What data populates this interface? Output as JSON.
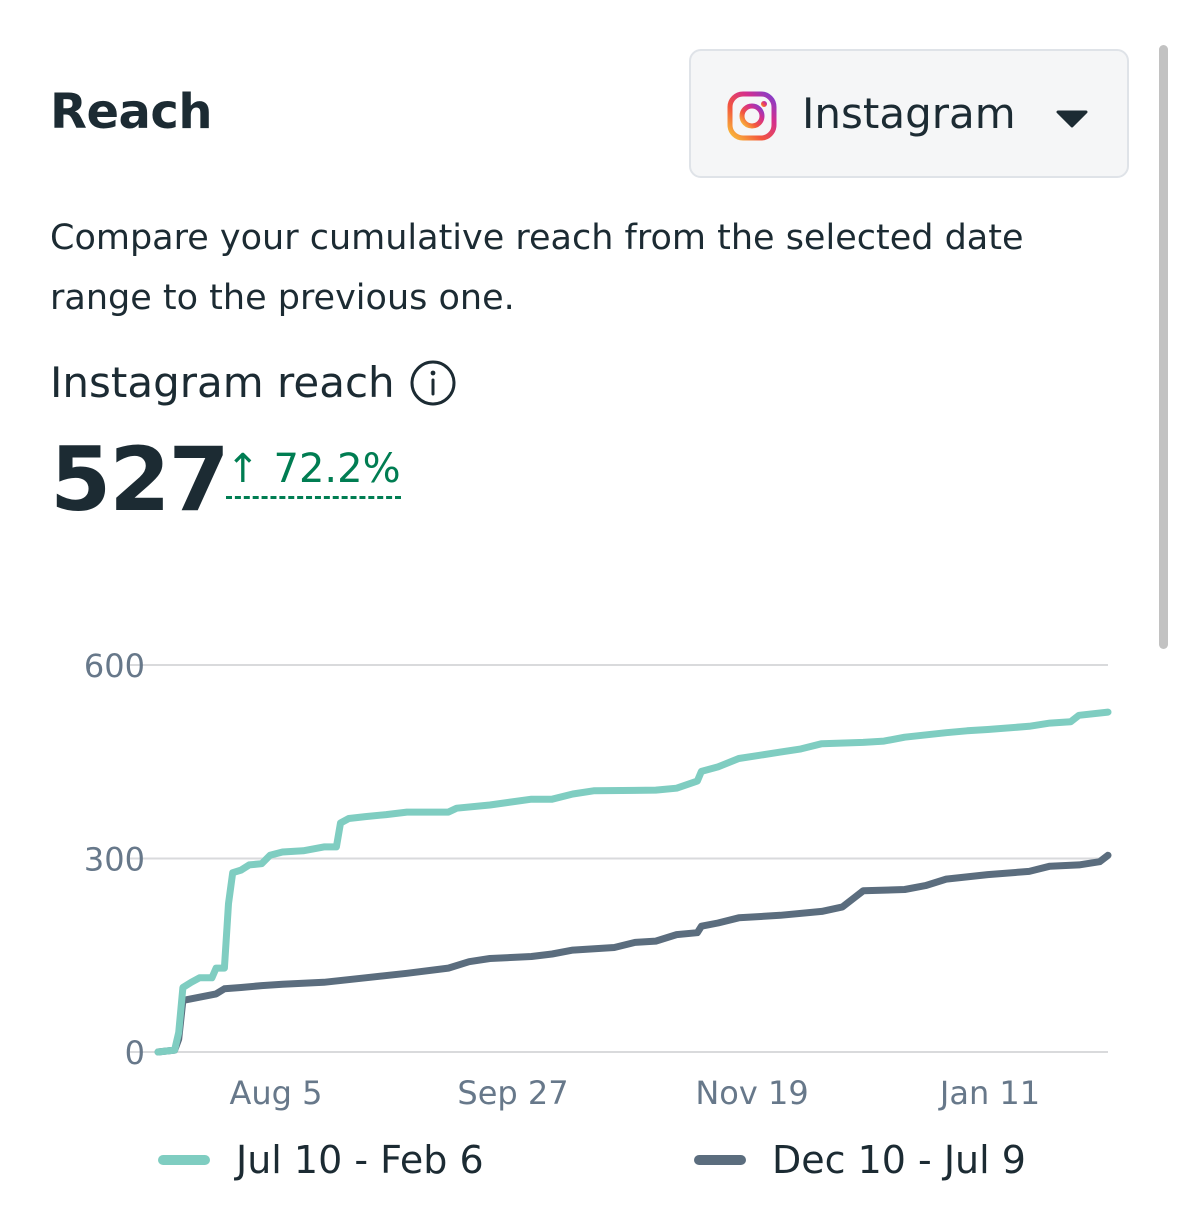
{
  "header": {
    "title": "Reach",
    "platform_select": {
      "value": "Instagram",
      "icon": "instagram-icon"
    }
  },
  "description": "Compare your cumulative reach from the selected date range to the previous one.",
  "metric": {
    "label": "Instagram reach",
    "value": "527",
    "change": "72.2%",
    "change_direction": "up",
    "change_color": "#007d52"
  },
  "chart_data": {
    "type": "line",
    "x_ticks": [
      "Aug 5",
      "Sep 27",
      "Nov 19",
      "Jan 11"
    ],
    "y_ticks": [
      0,
      300,
      600
    ],
    "ylim": [
      0,
      600
    ],
    "grid": true,
    "legend_position": "bottom",
    "series": [
      {
        "name": "Jul 10 - Feb 6",
        "color": "#7fcdc1",
        "points": [
          [
            0,
            0
          ],
          [
            4,
            3
          ],
          [
            5,
            30
          ],
          [
            6,
            100
          ],
          [
            8,
            108
          ],
          [
            10,
            115
          ],
          [
            13,
            115
          ],
          [
            14,
            130
          ],
          [
            16,
            130
          ],
          [
            17,
            230
          ],
          [
            18,
            278
          ],
          [
            20,
            282
          ],
          [
            22,
            290
          ],
          [
            25,
            292
          ],
          [
            27,
            305
          ],
          [
            30,
            310
          ],
          [
            35,
            312
          ],
          [
            40,
            318
          ],
          [
            43,
            318
          ],
          [
            44,
            355
          ],
          [
            46,
            362
          ],
          [
            50,
            365
          ],
          [
            55,
            368
          ],
          [
            60,
            372
          ],
          [
            70,
            372
          ],
          [
            72,
            378
          ],
          [
            80,
            383
          ],
          [
            90,
            392
          ],
          [
            95,
            392
          ],
          [
            100,
            400
          ],
          [
            105,
            405
          ],
          [
            120,
            406
          ],
          [
            125,
            409
          ],
          [
            130,
            420
          ],
          [
            131,
            435
          ],
          [
            135,
            442
          ],
          [
            140,
            455
          ],
          [
            145,
            460
          ],
          [
            150,
            465
          ],
          [
            155,
            470
          ],
          [
            160,
            478
          ],
          [
            170,
            480
          ],
          [
            175,
            482
          ],
          [
            180,
            488
          ],
          [
            190,
            495
          ],
          [
            195,
            498
          ],
          [
            200,
            500
          ],
          [
            210,
            505
          ],
          [
            215,
            510
          ],
          [
            220,
            512
          ],
          [
            222,
            522
          ],
          [
            229,
            527
          ]
        ]
      },
      {
        "name": "Dec 10 - Jul 9",
        "color": "#5b6d7e",
        "points": [
          [
            0,
            0
          ],
          [
            4,
            3
          ],
          [
            5,
            20
          ],
          [
            6,
            80
          ],
          [
            10,
            85
          ],
          [
            14,
            90
          ],
          [
            16,
            98
          ],
          [
            20,
            100
          ],
          [
            25,
            103
          ],
          [
            30,
            105
          ],
          [
            40,
            108
          ],
          [
            50,
            115
          ],
          [
            60,
            122
          ],
          [
            70,
            130
          ],
          [
            75,
            140
          ],
          [
            80,
            145
          ],
          [
            90,
            148
          ],
          [
            95,
            152
          ],
          [
            100,
            158
          ],
          [
            110,
            162
          ],
          [
            115,
            170
          ],
          [
            120,
            172
          ],
          [
            125,
            182
          ],
          [
            130,
            185
          ],
          [
            131,
            195
          ],
          [
            135,
            200
          ],
          [
            140,
            208
          ],
          [
            150,
            212
          ],
          [
            160,
            218
          ],
          [
            165,
            225
          ],
          [
            168,
            240
          ],
          [
            170,
            250
          ],
          [
            180,
            252
          ],
          [
            185,
            258
          ],
          [
            190,
            268
          ],
          [
            200,
            275
          ],
          [
            210,
            280
          ],
          [
            215,
            288
          ],
          [
            222,
            290
          ],
          [
            227,
            295
          ],
          [
            229,
            305
          ]
        ]
      }
    ]
  }
}
